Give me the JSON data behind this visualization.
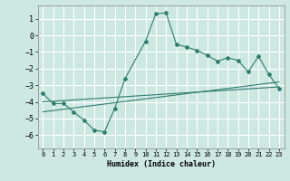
{
  "title": "",
  "xlabel": "Humidex (Indice chaleur)",
  "ylabel": "",
  "xlim": [
    -0.5,
    23.5
  ],
  "ylim": [
    -6.8,
    1.8
  ],
  "xticks": [
    0,
    1,
    2,
    3,
    4,
    5,
    6,
    7,
    8,
    9,
    10,
    11,
    12,
    13,
    14,
    15,
    16,
    17,
    18,
    19,
    20,
    21,
    22,
    23
  ],
  "yticks": [
    1,
    0,
    -1,
    -2,
    -3,
    -4,
    -5,
    -6
  ],
  "bg_color": "#cce8e0",
  "grid_color": "#ffffff",
  "line_color": "#2e7d6e",
  "line1_x": [
    0,
    1,
    2,
    3,
    4,
    5,
    6,
    7,
    8,
    10,
    11,
    12,
    13,
    14,
    15,
    16,
    17,
    18,
    19,
    20,
    21,
    22,
    23
  ],
  "line1_y": [
    -3.5,
    -4.1,
    -4.1,
    -4.6,
    -5.1,
    -5.7,
    -5.8,
    -4.4,
    -2.6,
    -0.35,
    1.3,
    1.35,
    -0.55,
    -0.7,
    -0.9,
    -1.2,
    -1.55,
    -1.35,
    -1.5,
    -2.2,
    -1.25,
    -2.35,
    -3.2
  ],
  "line2_x": [
    0,
    23
  ],
  "line2_y": [
    -4.0,
    -3.1
  ],
  "line3_x": [
    0,
    23
  ],
  "line3_y": [
    -4.6,
    -2.8
  ]
}
